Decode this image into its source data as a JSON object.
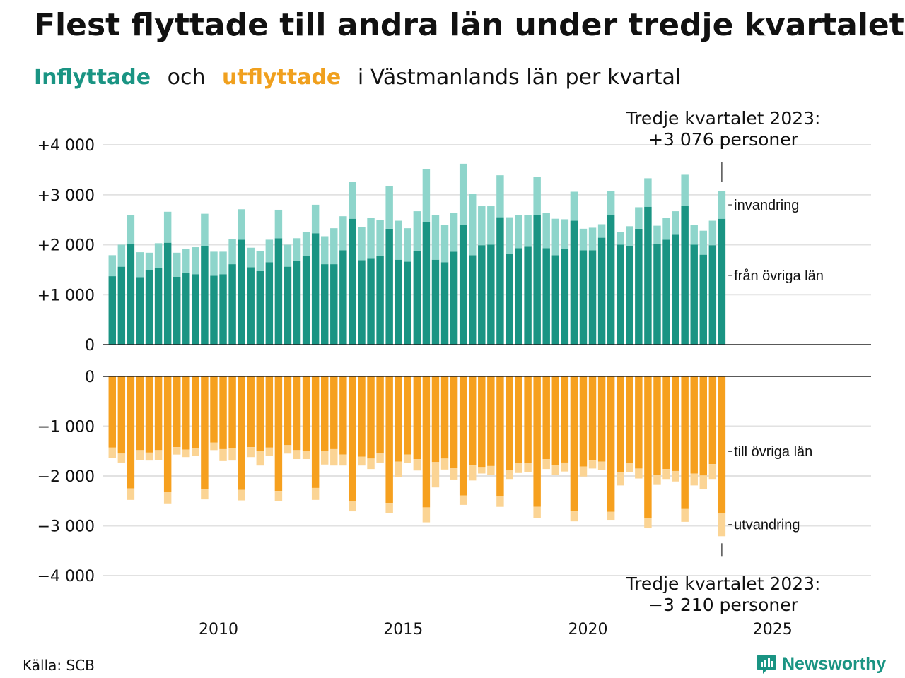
{
  "title": "Flest flyttade till andra län under tredje kvartalet",
  "subtitle": {
    "inflyttade": "Inflyttade",
    "och": "och",
    "utflyttade": "utflyttade",
    "rest": "i Västmanlands  län  per  kvartal"
  },
  "source": "Källa: SCB",
  "logo_text": "Newsworthy",
  "colors": {
    "in_lan": "#1a9483",
    "in_invandring": "#8ed5cb",
    "out_lan": "#f6a01e",
    "out_utvandring": "#fbd494",
    "title_in": "#1a9483",
    "title_out": "#f0a01e"
  },
  "chart_data": {
    "type": "bar",
    "stacked": true,
    "x_start": "2007 Q1",
    "x_ticks": [
      "2010",
      "2015",
      "2020",
      "2025"
    ],
    "panels": [
      {
        "name": "inflyttade",
        "yticks": [
          "+4 000",
          "+3 000",
          "+2 000",
          "+1 000",
          "0"
        ],
        "ylim": [
          0,
          4000
        ],
        "series": [
          {
            "name": "från övriga län",
            "values": [
              1370,
              1560,
              2010,
              1350,
              1490,
              1540,
              2040,
              1360,
              1440,
              1410,
              1970,
              1380,
              1410,
              1610,
              2100,
              1550,
              1470,
              1650,
              2130,
              1560,
              1680,
              1780,
              2230,
              1610,
              1610,
              1890,
              2520,
              1690,
              1720,
              1780,
              2320,
              1700,
              1660,
              1870,
              2450,
              1700,
              1650,
              1860,
              2400,
              1790,
              1990,
              2000,
              2550,
              1810,
              1930,
              1960,
              2590,
              1930,
              1790,
              1920,
              2480,
              1890,
              1890,
              2140,
              2600,
              2000,
              1970,
              2320,
              2760,
              2010,
              2100,
              2200,
              2780,
              2000,
              1800,
              1990,
              2520
            ]
          },
          {
            "name": "invandring",
            "values": [
              420,
              440,
              590,
              500,
              350,
              490,
              620,
              480,
              470,
              540,
              650,
              480,
              450,
              500,
              610,
              390,
              410,
              450,
              570,
              440,
              450,
              470,
              570,
              560,
              720,
              680,
              740,
              670,
              810,
              720,
              860,
              780,
              670,
              800,
              1060,
              890,
              750,
              770,
              1220,
              1230,
              780,
              770,
              840,
              740,
              670,
              640,
              770,
              710,
              730,
              590,
              580,
              430,
              450,
              270,
              480,
              250,
              400,
              430,
              570,
              370,
              430,
              470,
              620,
              390,
              480,
              490,
              556
            ]
          }
        ]
      },
      {
        "name": "utflyttade",
        "yticks": [
          "0",
          "−1 000",
          "−2 000",
          "−3 000",
          "−4 000"
        ],
        "ylim": [
          -4000,
          0
        ],
        "series": [
          {
            "name": "till övriga län",
            "values": [
              -1430,
              -1550,
              -2250,
              -1480,
              -1530,
              -1480,
              -2320,
              -1420,
              -1470,
              -1450,
              -2270,
              -1330,
              -1460,
              -1440,
              -2280,
              -1420,
              -1500,
              -1430,
              -2300,
              -1380,
              -1480,
              -1490,
              -2240,
              -1490,
              -1460,
              -1570,
              -2510,
              -1610,
              -1650,
              -1540,
              -2540,
              -1710,
              -1570,
              -1660,
              -2630,
              -1720,
              -1650,
              -1830,
              -2390,
              -1790,
              -1820,
              -1800,
              -2410,
              -1890,
              -1740,
              -1740,
              -2620,
              -1660,
              -1780,
              -1730,
              -2710,
              -1810,
              -1690,
              -1710,
              -2720,
              -1930,
              -1740,
              -1850,
              -2840,
              -1980,
              -1860,
              -1900,
              -2650,
              -1950,
              -1990,
              -1760,
              -2740
            ]
          },
          {
            "name": "utvandring",
            "values": [
              -210,
              -180,
              -230,
              -200,
              -160,
              -200,
              -230,
              -150,
              -150,
              -150,
              -200,
              -150,
              -240,
              -250,
              -210,
              -200,
              -290,
              -160,
              -200,
              -170,
              -180,
              -170,
              -240,
              -280,
              -330,
              -220,
              -200,
              -180,
              -210,
              -190,
              -210,
              -310,
              -170,
              -230,
              -300,
              -510,
              -220,
              -240,
              -190,
              -300,
              -130,
              -180,
              -210,
              -170,
              -200,
              -180,
              -230,
              -200,
              -200,
              -180,
              -200,
              -200,
              -160,
              -170,
              -160,
              -260,
              -180,
              -200,
              -210,
              -200,
              -200,
              -210,
              -270,
              -240,
              -280,
              -300,
              -470
            ]
          }
        ]
      }
    ],
    "annotations": [
      {
        "lines": [
          "Tredje kvartalet 2023:",
          "+3 076 personer"
        ]
      },
      {
        "lines": [
          "Tredje kvartalet 2023:",
          "−3 210 personer"
        ]
      }
    ]
  }
}
